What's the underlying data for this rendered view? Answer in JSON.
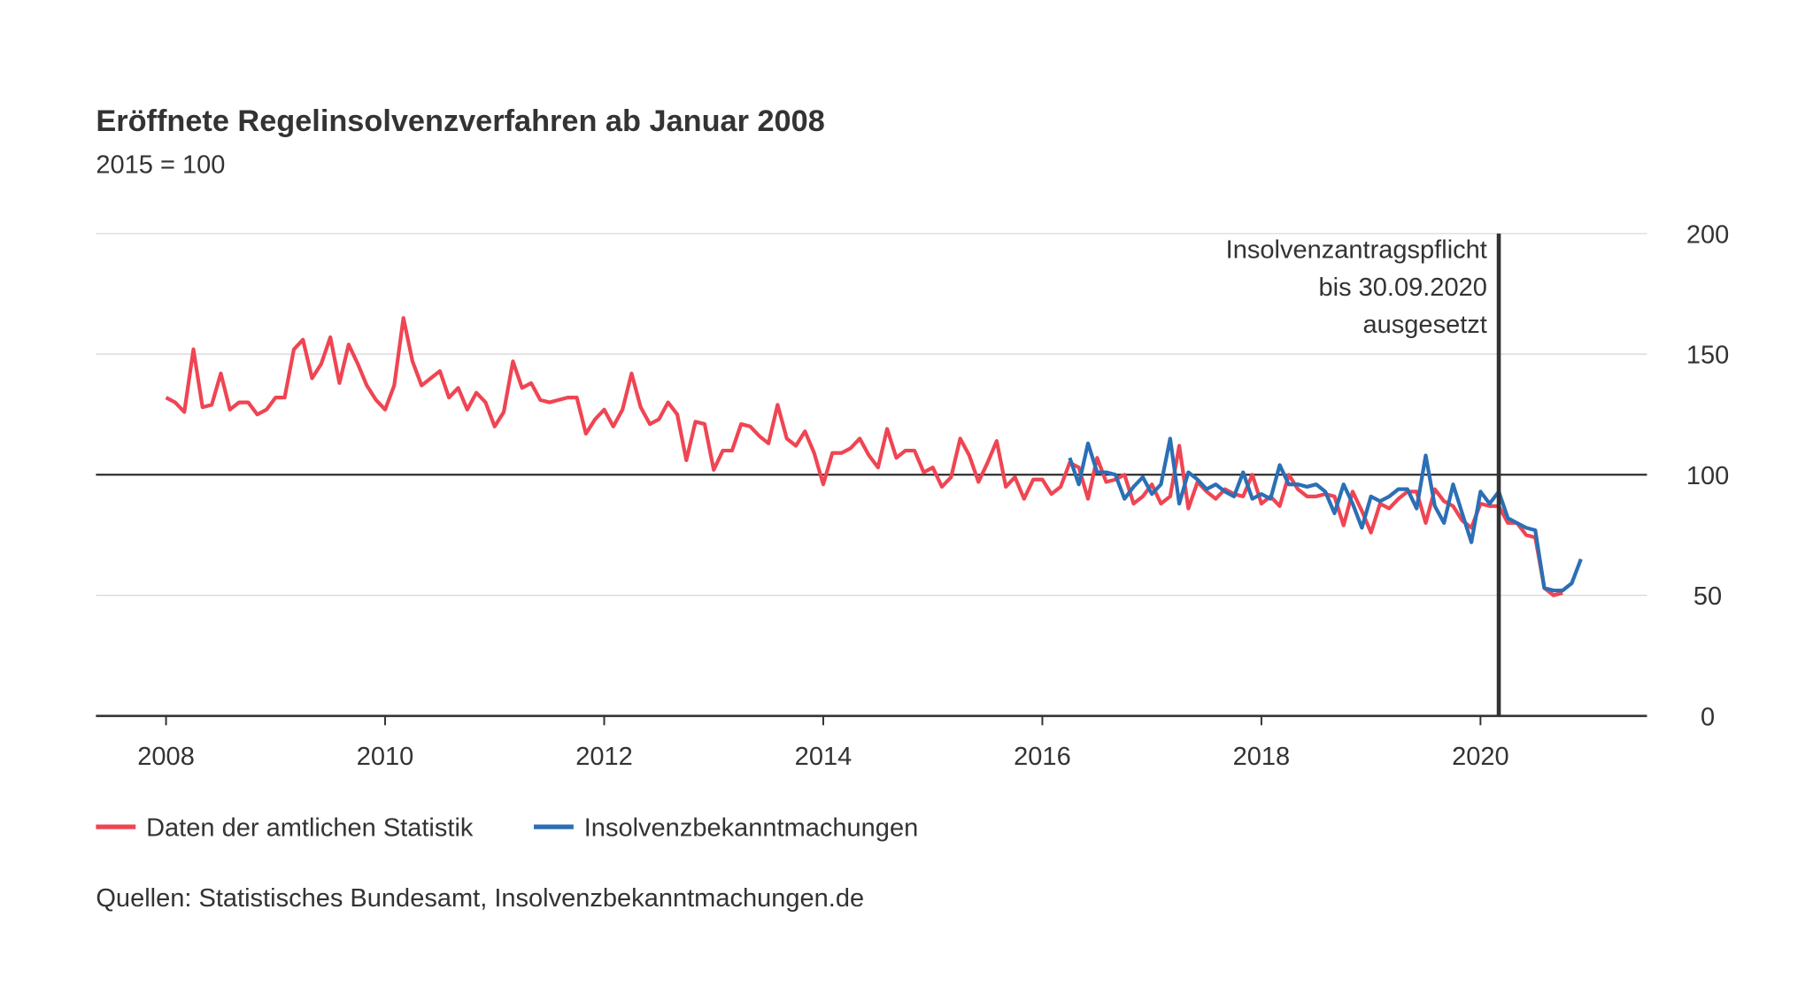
{
  "chart_data": {
    "type": "line",
    "title": "Eröffnete Regelinsolvenzverfahren ab Januar 2008",
    "subtitle": "2015 = 100",
    "source": "Quellen: Statistisches Bundesamt, Insolvenzbekanntmachungen.de",
    "annotation": {
      "x": 2020.167,
      "lines": [
        "Insolvenzantragspflicht",
        "bis 30.09.2020",
        "ausgesetzt"
      ]
    },
    "reference_line": 100,
    "xlim": [
      2007.36,
      2021.52
    ],
    "xticks": [
      2008,
      2010,
      2012,
      2014,
      2016,
      2018,
      2020
    ],
    "ylim": [
      0,
      200
    ],
    "yticks": [
      0,
      50,
      100,
      150,
      200
    ],
    "grid": true,
    "y_axis_side": "right",
    "legend": "bottom",
    "x": [
      2008,
      2008.083,
      2008.167,
      2008.25,
      2008.333,
      2008.417,
      2008.5,
      2008.583,
      2008.667,
      2008.75,
      2008.833,
      2008.917,
      2009,
      2009.083,
      2009.167,
      2009.25,
      2009.333,
      2009.417,
      2009.5,
      2009.583,
      2009.667,
      2009.75,
      2009.833,
      2009.917,
      2010,
      2010.083,
      2010.167,
      2010.25,
      2010.333,
      2010.417,
      2010.5,
      2010.583,
      2010.667,
      2010.75,
      2010.833,
      2010.917,
      2011,
      2011.083,
      2011.167,
      2011.25,
      2011.333,
      2011.417,
      2011.5,
      2011.583,
      2011.667,
      2011.75,
      2011.833,
      2011.917,
      2012,
      2012.083,
      2012.167,
      2012.25,
      2012.333,
      2012.417,
      2012.5,
      2012.583,
      2012.667,
      2012.75,
      2012.833,
      2012.917,
      2013,
      2013.083,
      2013.167,
      2013.25,
      2013.333,
      2013.417,
      2013.5,
      2013.583,
      2013.667,
      2013.75,
      2013.833,
      2013.917,
      2014,
      2014.083,
      2014.167,
      2014.25,
      2014.333,
      2014.417,
      2014.5,
      2014.583,
      2014.667,
      2014.75,
      2014.833,
      2014.917,
      2015,
      2015.083,
      2015.167,
      2015.25,
      2015.333,
      2015.417,
      2015.5,
      2015.583,
      2015.667,
      2015.75,
      2015.833,
      2015.917,
      2016,
      2016.083,
      2016.167,
      2016.25,
      2016.333,
      2016.417,
      2016.5,
      2016.583,
      2016.667,
      2016.75,
      2016.833,
      2016.917,
      2017,
      2017.083,
      2017.167,
      2017.25,
      2017.333,
      2017.417,
      2017.5,
      2017.583,
      2017.667,
      2017.75,
      2017.833,
      2017.917,
      2018,
      2018.083,
      2018.167,
      2018.25,
      2018.333,
      2018.417,
      2018.5,
      2018.583,
      2018.667,
      2018.75,
      2018.833,
      2018.917,
      2019,
      2019.083,
      2019.167,
      2019.25,
      2019.333,
      2019.417,
      2019.5,
      2019.583,
      2019.667,
      2019.75,
      2019.833,
      2019.917,
      2020,
      2020.083,
      2020.167,
      2020.25,
      2020.333,
      2020.417,
      2020.5,
      2020.583,
      2020.667,
      2020.75,
      2020.833,
      2020.917
    ],
    "series": [
      {
        "name": "Daten der amtlichen Statistik",
        "color": "#ef4553",
        "values": [
          132,
          130,
          126,
          152,
          128,
          129,
          142,
          127,
          130,
          130,
          125,
          127,
          132,
          132,
          152,
          156,
          140,
          146,
          157,
          138,
          154,
          146,
          137,
          131,
          127,
          137,
          165,
          147,
          137,
          140,
          143,
          132,
          136,
          127,
          134,
          130,
          120,
          126,
          147,
          136,
          138,
          131,
          130,
          131,
          132,
          132,
          117,
          123,
          127,
          120,
          127,
          142,
          128,
          121,
          123,
          130,
          125,
          106,
          122,
          121,
          102,
          110,
          110,
          121,
          120,
          116,
          113,
          129,
          115,
          112,
          118,
          109,
          96,
          109,
          109,
          111,
          115,
          108,
          103,
          119,
          107,
          110,
          110,
          101,
          103,
          95,
          99,
          115,
          108,
          97,
          105,
          114,
          95,
          99,
          90,
          98,
          98,
          92,
          95,
          105,
          103,
          90,
          107,
          97,
          98,
          100,
          88,
          91,
          96,
          88,
          91,
          112,
          86,
          97,
          93,
          90,
          94,
          92,
          91,
          100,
          88,
          91,
          87,
          100,
          94,
          91,
          91,
          92,
          91,
          79,
          93,
          85,
          76,
          88,
          86,
          90,
          93,
          93,
          80,
          94,
          89,
          87,
          81,
          78,
          88,
          87,
          87,
          80,
          80,
          75,
          74,
          53,
          50,
          51,
          null,
          null
        ]
      },
      {
        "name": "Insolvenzbekanntmachungen",
        "color": "#2b6fb5",
        "values": [
          null,
          null,
          null,
          null,
          null,
          null,
          null,
          null,
          null,
          null,
          null,
          null,
          null,
          null,
          null,
          null,
          null,
          null,
          null,
          null,
          null,
          null,
          null,
          null,
          null,
          null,
          null,
          null,
          null,
          null,
          null,
          null,
          null,
          null,
          null,
          null,
          null,
          null,
          null,
          null,
          null,
          null,
          null,
          null,
          null,
          null,
          null,
          null,
          null,
          null,
          null,
          null,
          null,
          null,
          null,
          null,
          null,
          null,
          null,
          null,
          null,
          null,
          null,
          null,
          null,
          null,
          null,
          null,
          null,
          null,
          null,
          null,
          null,
          null,
          null,
          null,
          null,
          null,
          null,
          null,
          null,
          null,
          null,
          null,
          null,
          null,
          null,
          null,
          null,
          null,
          null,
          null,
          null,
          null,
          null,
          null,
          null,
          null,
          null,
          107,
          96,
          113,
          101,
          101,
          100,
          90,
          95,
          99,
          92,
          96,
          115,
          88,
          101,
          98,
          94,
          96,
          93,
          91,
          101,
          90,
          92,
          90,
          104,
          96,
          96,
          95,
          96,
          93,
          84,
          96,
          88,
          78,
          91,
          89,
          91,
          94,
          94,
          86,
          108,
          87,
          80,
          96,
          84,
          72,
          93,
          88,
          93,
          82,
          80,
          78,
          77,
          53,
          52,
          52,
          55,
          65
        ]
      }
    ]
  }
}
